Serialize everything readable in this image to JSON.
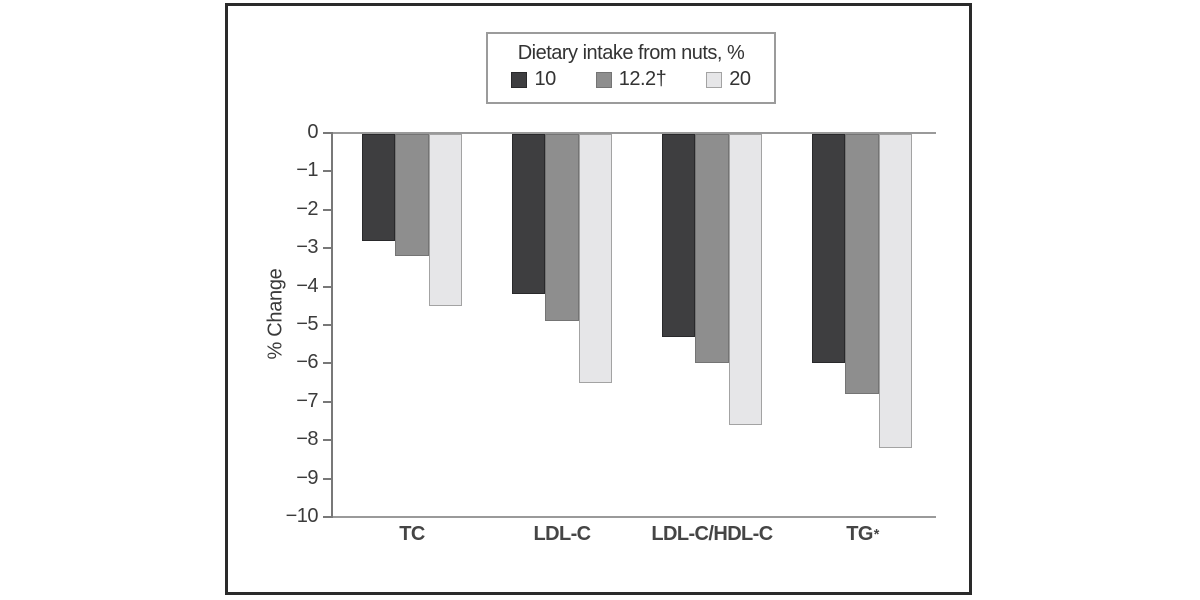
{
  "chart_data": {
    "type": "bar",
    "title": "",
    "legend_title": "Dietary intake from nuts, %",
    "legend_position": "top-center",
    "categories": [
      "TC",
      "LDL-C",
      "LDL-C/HDL-C",
      "TG*"
    ],
    "series": [
      {
        "name": "10",
        "color": "#3e3e40",
        "border_color": "#29292b",
        "values": [
          -2.8,
          -4.2,
          -5.3,
          -6.0
        ]
      },
      {
        "name": "12.2†",
        "color": "#8e8e8e",
        "border_color": "#747474",
        "values": [
          -3.2,
          -4.9,
          -6.0,
          -6.8
        ]
      },
      {
        "name": "20",
        "color": "#e6e6e8",
        "border_color": "#a3a3a3",
        "values": [
          -4.5,
          -6.5,
          -7.6,
          -8.2
        ]
      }
    ],
    "xlabel": "",
    "ylabel": "% Change",
    "ylim": [
      -10,
      0
    ],
    "yticks": [
      0,
      -1,
      -2,
      -3,
      -4,
      -5,
      -6,
      -7,
      -8,
      -9,
      -10
    ],
    "ytick_labels": [
      "0",
      "−1",
      "−2",
      "−3",
      "−4",
      "−5",
      "−6",
      "−7",
      "−8",
      "−9",
      "−10"
    ],
    "grid": false
  },
  "colors": {
    "frame_border": "#2a2a2a",
    "legend_border": "#9b9b9b",
    "axis_line": "#787878",
    "baseline": "#9a9a9a",
    "text": "#3b3b3b"
  }
}
